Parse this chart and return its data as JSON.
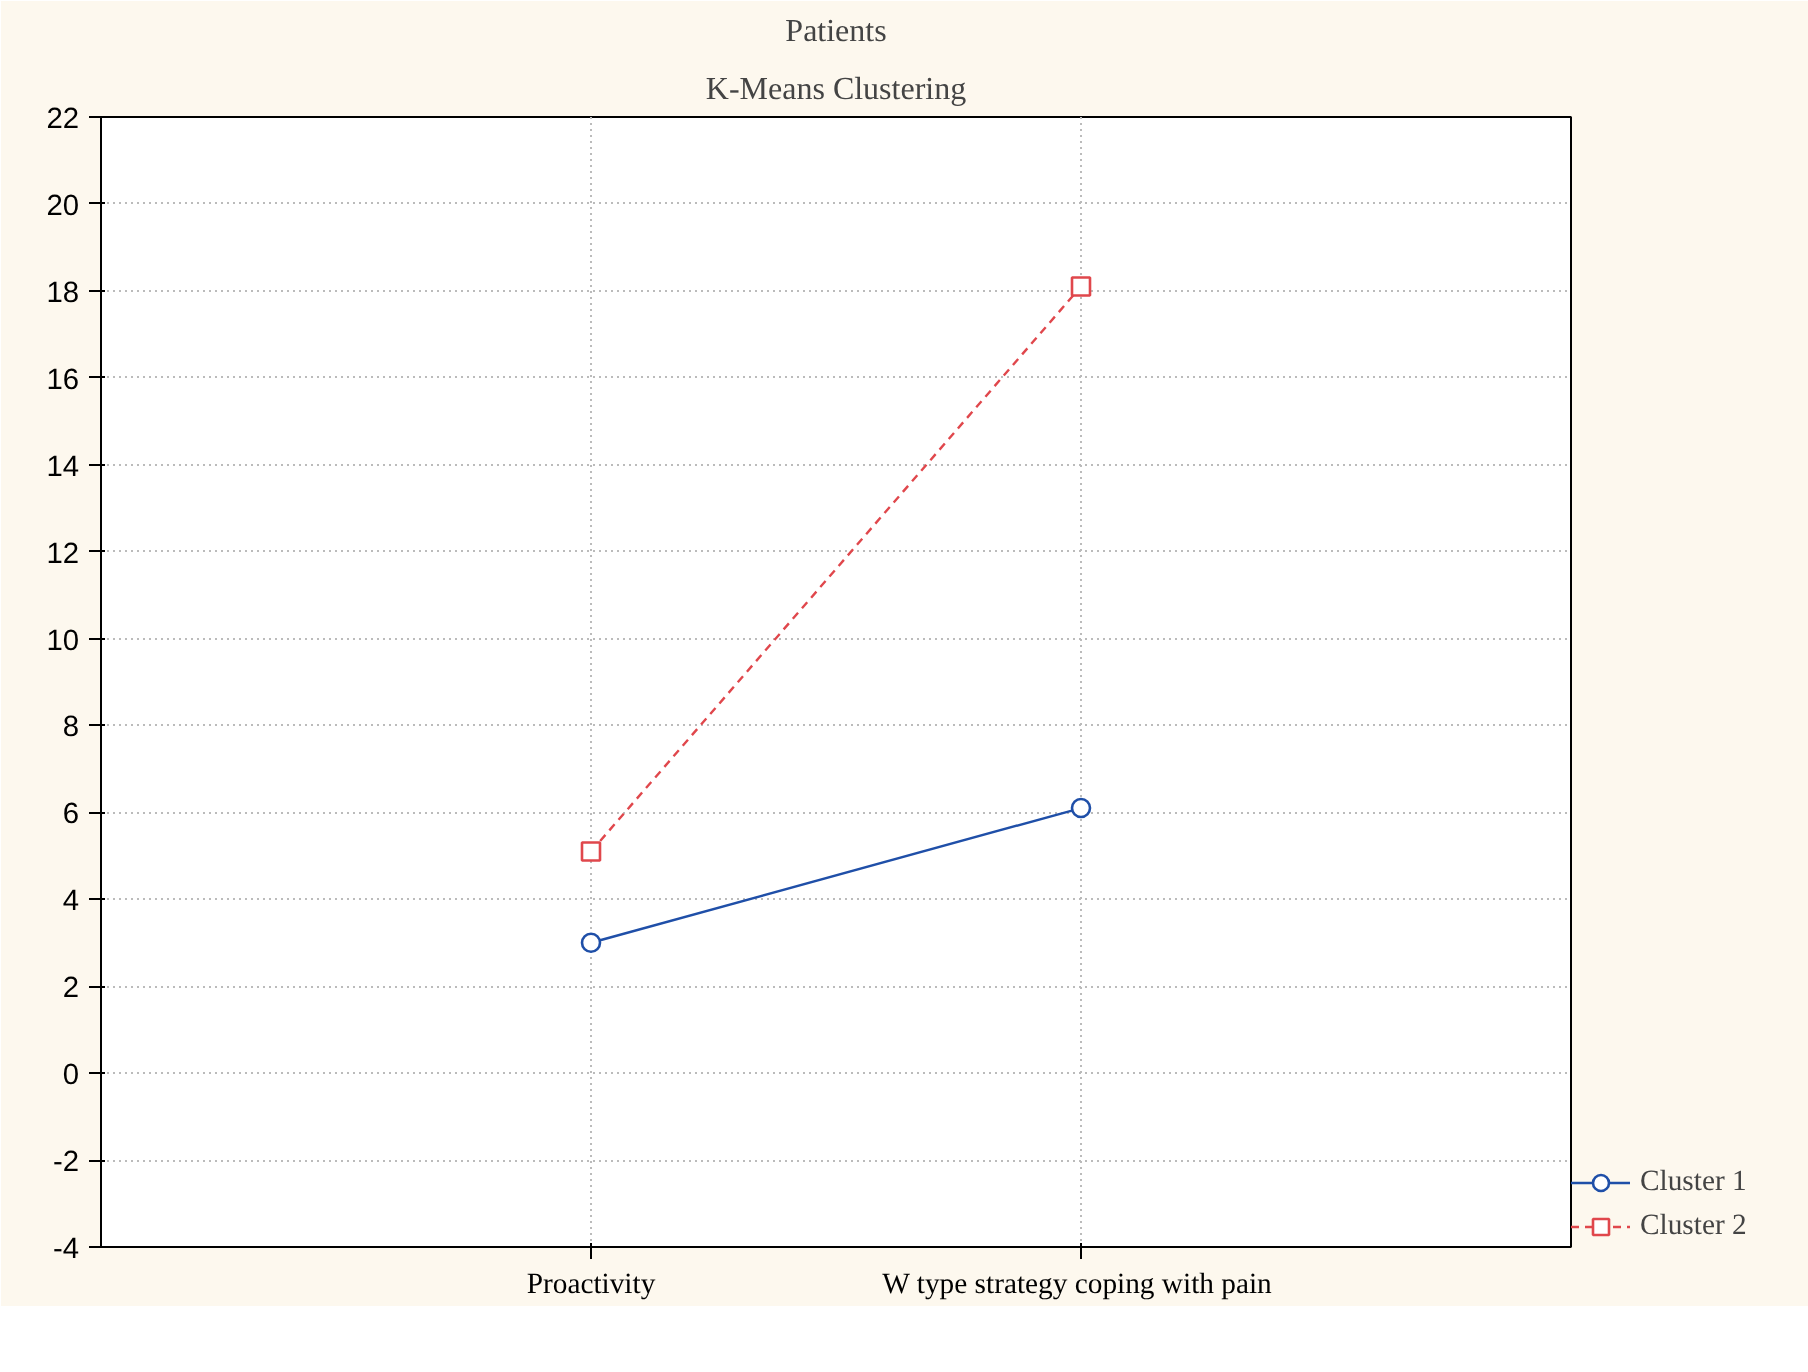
{
  "chart_data": {
    "type": "line",
    "title": "Patients",
    "subtitle": "K-Means Clustering",
    "categories": [
      "Proactivity",
      "W type  strategy coping with pain"
    ],
    "series": [
      {
        "name": "Cluster 1",
        "color": "#1f4fa8",
        "values": [
          3.0,
          6.1
        ],
        "marker": "circle",
        "line_style": "solid"
      },
      {
        "name": "Cluster 2",
        "color": "#e0474c",
        "values": [
          5.1,
          18.1
        ],
        "marker": "square",
        "line_style": "dashed"
      }
    ],
    "ylim": [
      -4,
      22
    ],
    "yticks": [
      -4,
      -2,
      0,
      2,
      4,
      6,
      8,
      10,
      12,
      14,
      16,
      18,
      20,
      22
    ],
    "grid": true,
    "legend": "bottom right"
  }
}
